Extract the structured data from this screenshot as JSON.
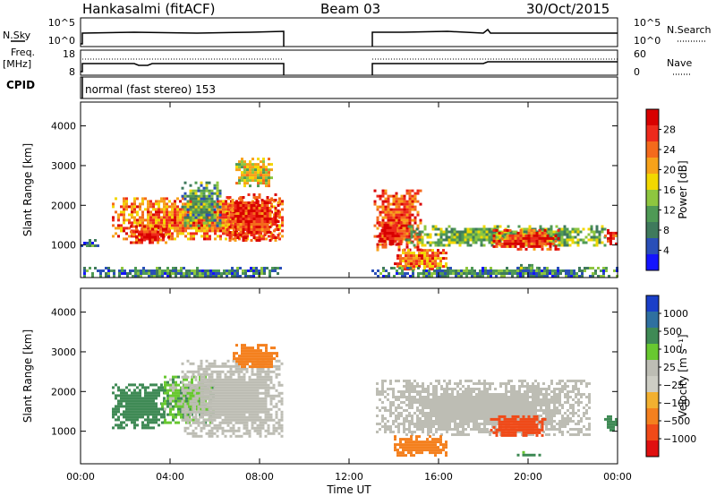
{
  "header": {
    "station": "Hankasalmi (fitACF)",
    "beam": "Beam 03",
    "date": "30/Oct/2015"
  },
  "strip_panels": {
    "nsky_label": "N.Sky",
    "nsky_ticks": [
      "10^5",
      "10^0"
    ],
    "nsearch_label": "N.Search",
    "nsearch_ticks": [
      "10^5",
      "10^0"
    ],
    "freq_label_1": "Freq.",
    "freq_label_2": "[MHz]",
    "freq_ticks": [
      "18",
      "8"
    ],
    "nave_label": "Nave",
    "nave_ticks": [
      "60",
      "0"
    ],
    "cpid_label": "CPID",
    "cpid_text": "normal (fast stereo) 153"
  },
  "colors": {
    "power_scale": [
      "#1414ff",
      "#2a4fb8",
      "#3f7a5c",
      "#4f9a55",
      "#8ec63f",
      "#f2d800",
      "#f7a21a",
      "#f46a1c",
      "#ee2a1c",
      "#d80000"
    ],
    "velocity_scale": [
      "#e01010",
      "#f04a18",
      "#f4801e",
      "#f2b030",
      "#cdcdc4",
      "#bdbdb4",
      "#68c830",
      "#3f8a55",
      "#2f70a0",
      "#1a3fc8"
    ],
    "ground_scatter": "#bdbdb4"
  },
  "chart_data": [
    {
      "type": "heatmap",
      "title": "",
      "xlabel": "Time UT",
      "ylabel": "Slant Range [km]",
      "x_ticks": [
        "00:00",
        "04:00",
        "08:00",
        "12:00",
        "16:00",
        "20:00",
        "00:00"
      ],
      "xlim_hours": [
        0,
        24
      ],
      "ylim": [
        180,
        4600
      ],
      "y_ticks": [
        1000,
        2000,
        3000,
        4000
      ],
      "colorbar_label": "Power [dB]",
      "colorbar_ticks": [
        4,
        8,
        12,
        16,
        20,
        24,
        28
      ],
      "colorbar_range": [
        0,
        30
      ],
      "data_gap_hours": [
        9,
        13
      ],
      "regions": [
        {
          "t": [
            0.0,
            0.8
          ],
          "r": [
            950,
            1150
          ],
          "power": 8
        },
        {
          "t": [
            1.4,
            9.0
          ],
          "r": [
            1150,
            2200
          ],
          "power": 22
        },
        {
          "t": [
            2.2,
            4.0
          ],
          "r": [
            1050,
            1500
          ],
          "power": 26
        },
        {
          "t": [
            4.5,
            6.2
          ],
          "r": [
            1500,
            2600
          ],
          "power": 10
        },
        {
          "t": [
            6.5,
            8.8
          ],
          "r": [
            1100,
            2300
          ],
          "power": 26
        },
        {
          "t": [
            6.8,
            8.6
          ],
          "r": [
            2500,
            3200
          ],
          "power": 16
        },
        {
          "t": [
            0.0,
            9.0
          ],
          "r": [
            200,
            450
          ],
          "power": 8
        },
        {
          "t": [
            13.1,
            15.2
          ],
          "r": [
            900,
            2400
          ],
          "power": 24
        },
        {
          "t": [
            13.3,
            14.3
          ],
          "r": [
            1000,
            1600
          ],
          "power": 28
        },
        {
          "t": [
            14.0,
            16.4
          ],
          "r": [
            400,
            900
          ],
          "power": 22
        },
        {
          "t": [
            14.5,
            23.5
          ],
          "r": [
            1000,
            1500
          ],
          "power": 12
        },
        {
          "t": [
            18.3,
            21.4
          ],
          "r": [
            900,
            1400
          ],
          "power": 26
        },
        {
          "t": [
            19.4,
            20.5
          ],
          "r": [
            350,
            520
          ],
          "power": 12
        },
        {
          "t": [
            13.0,
            24.0
          ],
          "r": [
            200,
            450
          ],
          "power": 8
        },
        {
          "t": [
            23.4,
            23.9
          ],
          "r": [
            1000,
            1400
          ],
          "power": 26
        }
      ]
    },
    {
      "type": "heatmap",
      "title": "",
      "xlabel": "Time UT",
      "ylabel": "Slant Range [km]",
      "x_ticks": [
        "00:00",
        "04:00",
        "08:00",
        "12:00",
        "16:00",
        "20:00",
        "00:00"
      ],
      "xlim_hours": [
        0,
        24
      ],
      "ylim": [
        180,
        4600
      ],
      "y_ticks": [
        1000,
        2000,
        3000,
        4000
      ],
      "colorbar_label": "Velocity [m s⁻¹]",
      "colorbar_ticks": [
        "1000",
        "500",
        "100",
        "25",
        "−25",
        "−100",
        "−500",
        "−1000"
      ],
      "data_gap_hours": [
        9,
        13
      ],
      "regions": [
        {
          "t": [
            1.4,
            3.8
          ],
          "r": [
            1100,
            2200
          ],
          "velocity": 300
        },
        {
          "t": [
            3.6,
            6.0
          ],
          "r": [
            1200,
            2400
          ],
          "velocity": 60
        },
        {
          "t": [
            4.5,
            9.0
          ],
          "r": [
            900,
            2800
          ],
          "velocity": "ground"
        },
        {
          "t": [
            6.8,
            8.8
          ],
          "r": [
            2600,
            3200
          ],
          "velocity": -200
        },
        {
          "t": [
            13.2,
            22.8
          ],
          "r": [
            900,
            2300
          ],
          "velocity": "ground"
        },
        {
          "t": [
            14.0,
            16.4
          ],
          "r": [
            400,
            900
          ],
          "velocity": -300
        },
        {
          "t": [
            18.3,
            20.8
          ],
          "r": [
            900,
            1400
          ],
          "velocity": -600
        },
        {
          "t": [
            19.5,
            20.5
          ],
          "r": [
            380,
            500
          ],
          "velocity": 150
        },
        {
          "t": [
            23.4,
            23.9
          ],
          "r": [
            1000,
            1400
          ],
          "velocity": 300
        }
      ]
    }
  ]
}
